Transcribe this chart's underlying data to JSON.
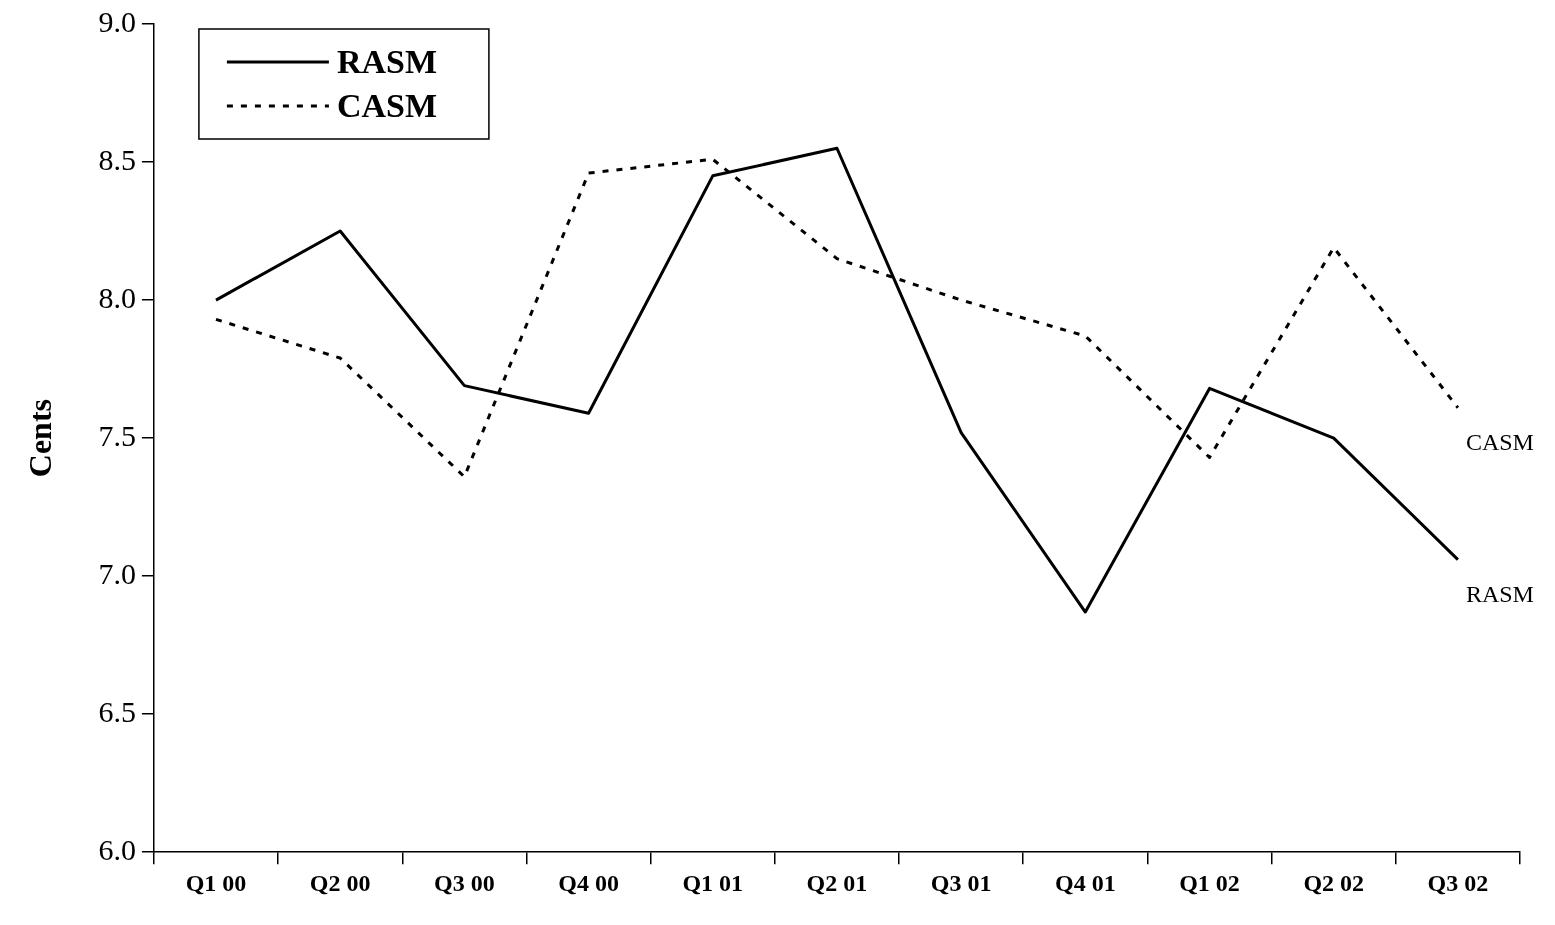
{
  "chart_data": {
    "type": "line",
    "ylabel": "Cents",
    "categories": [
      "Q1 00",
      "Q2 00",
      "Q3 00",
      "Q4 00",
      "Q1 01",
      "Q2 01",
      "Q3 01",
      "Q4 01",
      "Q1 02",
      "Q2 02",
      "Q3 02"
    ],
    "series": [
      {
        "name": "RASM",
        "color": "#000000",
        "line_style": "solid",
        "values": [
          8.0,
          8.25,
          7.69,
          7.59,
          8.45,
          8.55,
          7.52,
          6.87,
          7.68,
          7.5,
          7.06
        ]
      },
      {
        "name": "CASM",
        "color": "#000000",
        "line_style": "dotted",
        "values": [
          7.93,
          7.79,
          7.36,
          8.46,
          8.51,
          8.15,
          8.0,
          7.87,
          7.43,
          8.19,
          7.61
        ]
      }
    ],
    "ylim": [
      6.0,
      9.0
    ],
    "yticks": [
      {
        "value": 6,
        "label": "6.0"
      },
      {
        "value": 6.5,
        "label": "6.5"
      },
      {
        "value": 7,
        "label": "7.0"
      },
      {
        "value": 7.5,
        "label": "7.5"
      },
      {
        "value": 8,
        "label": "8.0"
      },
      {
        "value": 8.5,
        "label": "8.5"
      },
      {
        "value": 9,
        "label": "9.0"
      }
    ],
    "grid": false,
    "legend": "top left",
    "marker": "none"
  }
}
